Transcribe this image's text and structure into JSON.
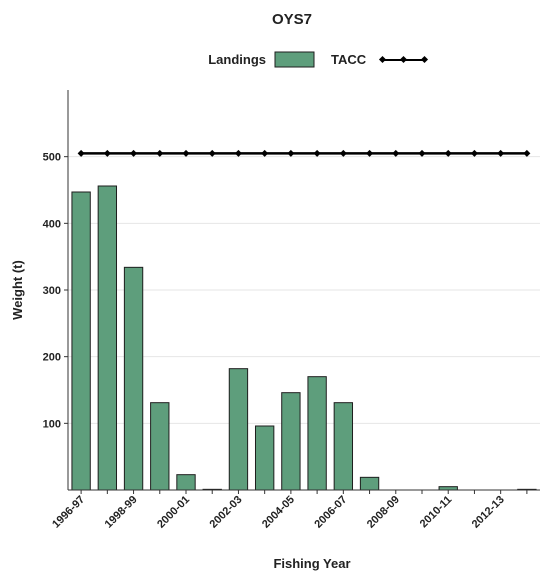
{
  "chart_data": {
    "type": "bar",
    "title": "OYS7",
    "xlabel": "Fishing Year",
    "ylabel": "Weight (t)",
    "ylim": [
      0,
      600
    ],
    "yticks": [
      100,
      200,
      300,
      400,
      500
    ],
    "grid": true,
    "legend_position": "top-center",
    "categories": [
      "1996-97",
      "1997-98",
      "1998-99",
      "1999-00",
      "2000-01",
      "2001-02",
      "2002-03",
      "2003-04",
      "2004-05",
      "2005-06",
      "2006-07",
      "2007-08",
      "2008-09",
      "2009-10",
      "2010-11",
      "2011-12",
      "2012-13",
      "2013-14"
    ],
    "x_tick_labels": [
      "1996-97",
      "1998-99",
      "2000-01",
      "2002-03",
      "2004-05",
      "2006-07",
      "2008-09",
      "2010-11",
      "2012-13"
    ],
    "series": [
      {
        "name": "Landings",
        "kind": "bar",
        "color": "#5e9e7c",
        "values": [
          447,
          456,
          334,
          131,
          23,
          1,
          182,
          96,
          146,
          170,
          131,
          19,
          0,
          0,
          5,
          0,
          0,
          1
        ]
      },
      {
        "name": "TACC",
        "kind": "line",
        "color": "#000000",
        "values": [
          505,
          505,
          505,
          505,
          505,
          505,
          505,
          505,
          505,
          505,
          505,
          505,
          505,
          505,
          505,
          505,
          505,
          505
        ]
      }
    ]
  }
}
